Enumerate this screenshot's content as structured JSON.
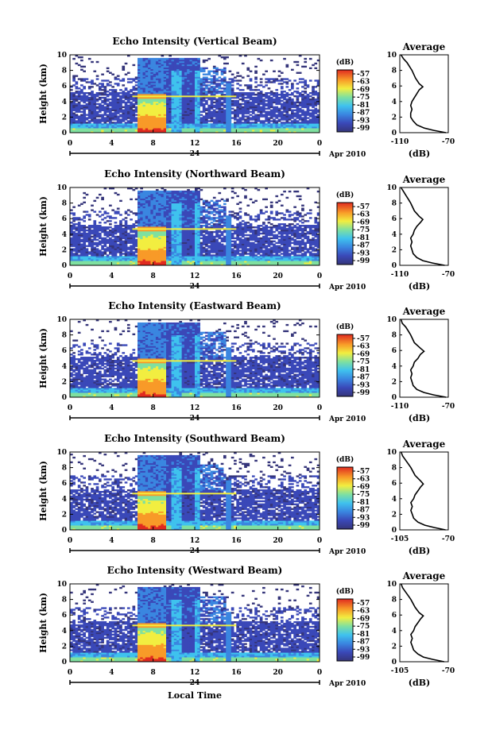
{
  "figure": {
    "xlabel": "Local Time",
    "date_label": "Apr 2010"
  },
  "chart_data": [
    {
      "type": "heatmap",
      "title": "Echo Intensity (Vertical Beam)",
      "ylabel": "Height (km)",
      "xlabel": "Local Time",
      "x_ticks": [
        "0",
        "4",
        "8",
        "12",
        "16",
        "20",
        "0"
      ],
      "xlim": [
        0,
        24
      ],
      "y_ticks": [
        "0",
        "2",
        "4",
        "6",
        "8",
        "10"
      ],
      "ylim": [
        0,
        10
      ],
      "day_label": "24",
      "date_label": "Apr 2010",
      "colorbar": {
        "label": "(dB)",
        "ticks": [
          "-57",
          "-63",
          "-69",
          "-75",
          "-81",
          "-87",
          "-93",
          "-99"
        ]
      },
      "average_profile": {
        "title": "Average",
        "xlabel": "(dB)",
        "x_ticks": [
          "-110",
          "-70"
        ],
        "xlim": [
          -110,
          -70
        ],
        "y_ticks": [
          "0",
          "2",
          "4",
          "6",
          "8",
          "10"
        ],
        "height_km": [
          0,
          0.3,
          0.6,
          1,
          1.5,
          2,
          2.5,
          3,
          3.5,
          4,
          4.5,
          5,
          5.5,
          5.9,
          6.3,
          7,
          8,
          8.5,
          9,
          9.5,
          10
        ],
        "db": [
          -72,
          -82,
          -90,
          -96,
          -99,
          -101,
          -101,
          -100,
          -101,
          -100,
          -98,
          -96,
          -94,
          -91,
          -94,
          -97,
          -100,
          -102,
          -104,
          -107,
          -109
        ]
      }
    },
    {
      "type": "heatmap",
      "title": "Echo Intensity (Northward Beam)",
      "ylabel": "Height (km)",
      "xlabel": "Local Time",
      "x_ticks": [
        "0",
        "4",
        "8",
        "12",
        "16",
        "20",
        "0"
      ],
      "xlim": [
        0,
        24
      ],
      "y_ticks": [
        "0",
        "2",
        "4",
        "6",
        "8",
        "10"
      ],
      "ylim": [
        0,
        10
      ],
      "day_label": "24",
      "date_label": "Apr 2010",
      "colorbar": {
        "label": "(dB)",
        "ticks": [
          "-57",
          "-63",
          "-69",
          "-75",
          "-81",
          "-87",
          "-93",
          "-99"
        ]
      },
      "average_profile": {
        "title": "Average",
        "xlabel": "(dB)",
        "x_ticks": [
          "-110",
          "-70"
        ],
        "xlim": [
          -110,
          -70
        ],
        "y_ticks": [
          "0",
          "2",
          "4",
          "6",
          "8",
          "10"
        ],
        "height_km": [
          0,
          0.3,
          0.6,
          1,
          1.5,
          2,
          2.5,
          3,
          3.5,
          4,
          4.5,
          5,
          5.5,
          5.9,
          6.3,
          7,
          8,
          8.5,
          9,
          9.5,
          10
        ],
        "db": [
          -73,
          -83,
          -91,
          -96,
          -99,
          -100,
          -101,
          -100,
          -101,
          -99,
          -98,
          -96,
          -93,
          -91,
          -94,
          -98,
          -101,
          -103,
          -105,
          -107,
          -109
        ]
      }
    },
    {
      "type": "heatmap",
      "title": "Echo Intensity (Eastward Beam)",
      "ylabel": "Height (km)",
      "xlabel": "Local Time",
      "x_ticks": [
        "0",
        "4",
        "8",
        "12",
        "16",
        "20",
        "0"
      ],
      "xlim": [
        0,
        24
      ],
      "y_ticks": [
        "0",
        "2",
        "4",
        "6",
        "8",
        "10"
      ],
      "ylim": [
        0,
        10
      ],
      "day_label": "24",
      "date_label": "Apr 2010",
      "colorbar": {
        "label": "(dB)",
        "ticks": [
          "-57",
          "-63",
          "-69",
          "-75",
          "-81",
          "-87",
          "-93",
          "-99"
        ]
      },
      "average_profile": {
        "title": "Average",
        "xlabel": "(dB)",
        "x_ticks": [
          "-110",
          "-70"
        ],
        "xlim": [
          -110,
          -70
        ],
        "y_ticks": [
          "0",
          "2",
          "4",
          "6",
          "8",
          "10"
        ],
        "height_km": [
          0,
          0.3,
          0.6,
          1,
          1.5,
          2,
          2.5,
          3,
          3.5,
          4,
          4.5,
          5,
          5.5,
          5.9,
          6.3,
          7,
          8,
          8.5,
          9,
          9.5,
          10
        ],
        "db": [
          -72,
          -82,
          -90,
          -96,
          -99,
          -100,
          -101,
          -100,
          -101,
          -99,
          -98,
          -95,
          -93,
          -90,
          -93,
          -98,
          -101,
          -103,
          -105,
          -108,
          -109
        ]
      }
    },
    {
      "type": "heatmap",
      "title": "Echo Intensity (Southward Beam)",
      "ylabel": "Height (km)",
      "xlabel": "Local Time",
      "x_ticks": [
        "0",
        "4",
        "8",
        "12",
        "16",
        "20",
        "0"
      ],
      "xlim": [
        0,
        24
      ],
      "y_ticks": [
        "0",
        "2",
        "4",
        "6",
        "8",
        "10"
      ],
      "ylim": [
        0,
        10
      ],
      "day_label": "24",
      "date_label": "Apr 2010",
      "colorbar": {
        "label": "(dB)",
        "ticks": [
          "-57",
          "-63",
          "-69",
          "-75",
          "-81",
          "-87",
          "-93",
          "-99"
        ]
      },
      "average_profile": {
        "title": "Average",
        "xlabel": "(dB)",
        "x_ticks": [
          "-105",
          "-70"
        ],
        "xlim": [
          -105,
          -70
        ],
        "y_ticks": [
          "0",
          "2",
          "4",
          "6",
          "8",
          "10"
        ],
        "height_km": [
          0,
          0.3,
          0.6,
          1,
          1.5,
          2,
          2.5,
          3,
          3.5,
          4,
          4.5,
          5,
          5.5,
          5.9,
          6.3,
          7,
          8,
          8.5,
          9,
          9.5,
          10
        ],
        "db": [
          -72,
          -80,
          -87,
          -92,
          -95,
          -96,
          -97,
          -96,
          -97,
          -95,
          -94,
          -92,
          -90,
          -88,
          -90,
          -94,
          -97,
          -99,
          -101,
          -103,
          -104
        ]
      }
    },
    {
      "type": "heatmap",
      "title": "Echo Intensity (Westward Beam)",
      "ylabel": "Height (km)",
      "xlabel": "Local Time",
      "x_ticks": [
        "0",
        "4",
        "8",
        "12",
        "16",
        "20",
        "0"
      ],
      "xlim": [
        0,
        24
      ],
      "y_ticks": [
        "0",
        "2",
        "4",
        "6",
        "8",
        "10"
      ],
      "ylim": [
        0,
        10
      ],
      "day_label": "24",
      "date_label": "Apr 2010",
      "colorbar": {
        "label": "(dB)",
        "ticks": [
          "-57",
          "-63",
          "-69",
          "-75",
          "-81",
          "-87",
          "-93",
          "-99"
        ]
      },
      "average_profile": {
        "title": "Average",
        "xlabel": "(dB)",
        "x_ticks": [
          "-105",
          "-70"
        ],
        "xlim": [
          -105,
          -70
        ],
        "y_ticks": [
          "0",
          "2",
          "4",
          "6",
          "8",
          "10"
        ],
        "height_km": [
          0,
          0.3,
          0.6,
          1,
          1.5,
          2,
          2.5,
          3,
          3.5,
          4,
          4.5,
          5,
          5.5,
          5.9,
          6.3,
          7,
          8,
          8.5,
          9,
          9.5,
          10
        ],
        "db": [
          -73,
          -81,
          -88,
          -92,
          -95,
          -96,
          -97,
          -96,
          -97,
          -95,
          -94,
          -92,
          -90,
          -88,
          -91,
          -94,
          -97,
          -99,
          -101,
          -103,
          -104
        ]
      }
    }
  ]
}
